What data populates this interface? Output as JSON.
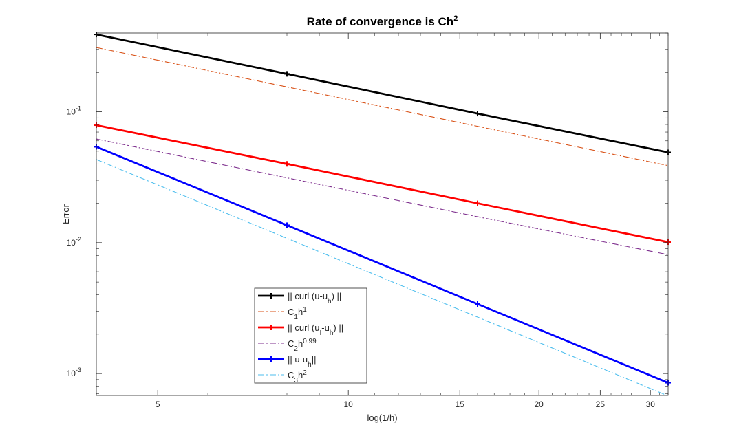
{
  "chart_data": {
    "type": "line",
    "title": "Rate  of  convergence  is  Ch²",
    "title_main": "Rate  of  convergence  is  Ch",
    "title_sup": "2",
    "xlabel": "log(1/h)",
    "ylabel": "Error",
    "xscale": "log",
    "yscale": "log",
    "xlim": [
      4,
      32
    ],
    "ylim": [
      0.00068,
      0.4
    ],
    "xticks": [
      5,
      10,
      15,
      20,
      25,
      30
    ],
    "xtick_labels": [
      "5",
      "10",
      "15",
      "20",
      "25",
      "30"
    ],
    "yticks": [
      0.1,
      0.01,
      0.001
    ],
    "ytick_labels": [
      {
        "base": "10",
        "exp": "-1"
      },
      {
        "base": "10",
        "exp": "-2"
      },
      {
        "base": "10",
        "exp": "-3"
      }
    ],
    "grid": false,
    "legend_position": "lower-left-center",
    "series": [
      {
        "name_parts": [
          {
            "t": "||  curl  (u-u"
          },
          {
            "t": "h",
            "sub": true
          },
          {
            "t": ")  ||"
          }
        ],
        "color": "#000000",
        "style": "solid-marker",
        "x": [
          4,
          8,
          16,
          32
        ],
        "y": [
          0.39,
          0.195,
          0.097,
          0.049
        ]
      },
      {
        "name_parts": [
          {
            "t": "C"
          },
          {
            "t": "1",
            "sub": true
          },
          {
            "t": "h"
          },
          {
            "t": "1",
            "sup": true
          }
        ],
        "color": "#d95319",
        "style": "dashdot",
        "x": [
          4,
          8,
          16,
          32
        ],
        "y": [
          0.31,
          0.155,
          0.0775,
          0.0388
        ]
      },
      {
        "name_parts": [
          {
            "t": "||  curl  (u"
          },
          {
            "t": "I",
            "sub": true
          },
          {
            "t": "-u"
          },
          {
            "t": "h",
            "sub": true
          },
          {
            "t": ")  ||"
          }
        ],
        "color": "#ff0000",
        "style": "solid-marker",
        "x": [
          4,
          8,
          16,
          32
        ],
        "y": [
          0.079,
          0.04,
          0.02,
          0.0101
        ]
      },
      {
        "name_parts": [
          {
            "t": "C"
          },
          {
            "t": "2",
            "sub": true
          },
          {
            "t": "h"
          },
          {
            "t": "0.99",
            "sup": true
          }
        ],
        "color": "#7e2f8e",
        "style": "dashdot",
        "x": [
          4,
          8,
          16,
          32
        ],
        "y": [
          0.062,
          0.0313,
          0.0158,
          0.0081
        ]
      },
      {
        "name_parts": [
          {
            "t": "||  u-u"
          },
          {
            "t": "h",
            "sub": true
          },
          {
            "t": "||"
          }
        ],
        "color": "#0000ff",
        "style": "solid-marker",
        "x": [
          4,
          8,
          16,
          32
        ],
        "y": [
          0.054,
          0.0136,
          0.0034,
          0.00085
        ]
      },
      {
        "name_parts": [
          {
            "t": "C"
          },
          {
            "t": "3",
            "sub": true
          },
          {
            "t": "h"
          },
          {
            "t": "2",
            "sup": true
          }
        ],
        "color": "#4dbeee",
        "style": "dashdot",
        "x": [
          4,
          8,
          16,
          32
        ],
        "y": [
          0.0432,
          0.0108,
          0.0027,
          0.000675
        ]
      }
    ]
  }
}
